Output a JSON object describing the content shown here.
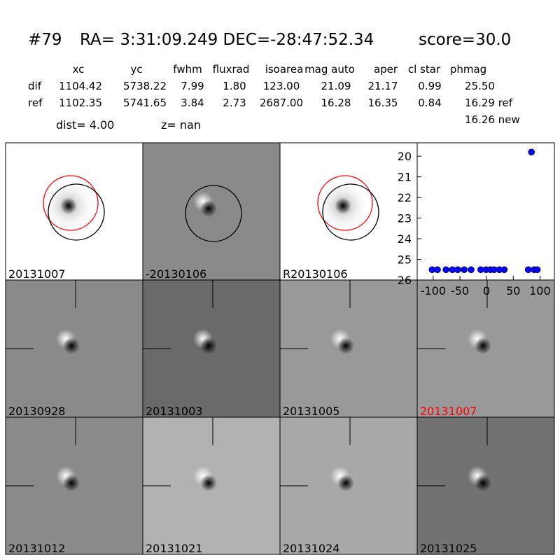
{
  "header": {
    "id": "#79",
    "coords": "RA= 3:31:09.249 DEC=-28:47:52.34",
    "score": "score=30.0"
  },
  "table": {
    "columns": [
      "xc",
      "yc",
      "fwhm",
      "fluxrad",
      "isoarea",
      "mag auto",
      "aper",
      "cl star",
      "phmag"
    ],
    "rows": [
      {
        "label": "dif",
        "values": [
          "1104.42",
          "5738.22",
          "7.99",
          "1.80",
          "123.00",
          "21.09",
          "21.17",
          "0.99",
          "25.50"
        ]
      },
      {
        "label": "ref",
        "values": [
          "1102.35",
          "5741.65",
          "3.84",
          "2.73",
          "2687.00",
          "16.28",
          "16.35",
          "0.84",
          "16.29 ref"
        ]
      }
    ],
    "extra": "16.26 new"
  },
  "dist": "dist=  4.00",
  "z": "z=   nan",
  "stamps": [
    "20131007",
    "-20130106",
    "R20130106",
    "20130928",
    "20131003",
    "20131005",
    "20131007",
    "20131012",
    "20131021",
    "20131024",
    "20131025"
  ],
  "chart_data": {
    "type": "scatter",
    "color": "#0000ff",
    "x": [
      -102,
      -92,
      -76,
      -64,
      -54,
      -42,
      -29,
      -11,
      -1,
      7,
      14,
      24,
      33,
      78,
      84,
      89,
      95
    ],
    "values": [
      25.5,
      25.5,
      25.5,
      25.5,
      25.5,
      25.5,
      25.5,
      25.5,
      25.5,
      25.5,
      25.5,
      25.5,
      25.5,
      25.5,
      19.8,
      25.5,
      25.5
    ],
    "xlim": [
      -130,
      127
    ],
    "xticks": [
      -100,
      -50,
      0,
      50,
      100
    ],
    "ylim": [
      26,
      19.35
    ],
    "yticks": [
      20,
      21,
      22,
      23,
      24,
      25,
      26
    ]
  }
}
